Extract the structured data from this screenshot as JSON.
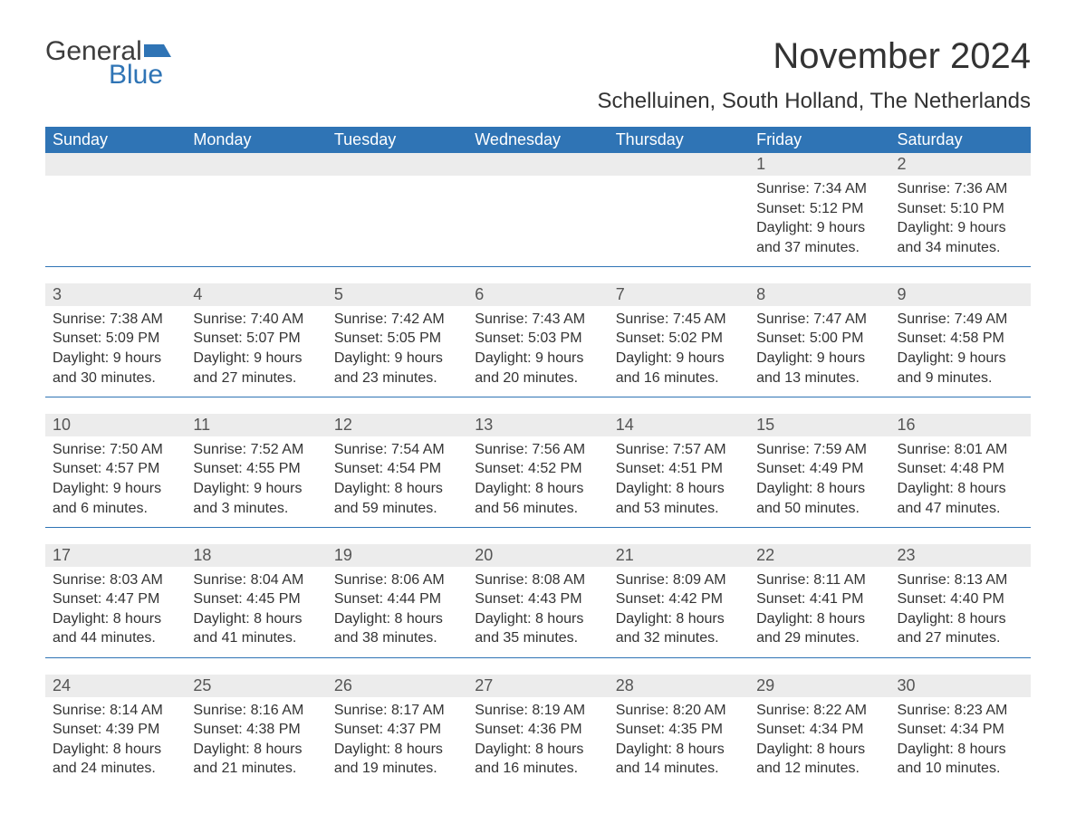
{
  "logo": {
    "text_general": "General",
    "text_blue": "Blue",
    "flag_color": "#2f74b5"
  },
  "title": "November 2024",
  "location": "Schelluinen, South Holland, The Netherlands",
  "colors": {
    "header_bg": "#2f74b5",
    "header_text": "#ffffff",
    "daynum_bg": "#ececec",
    "body_text": "#333333",
    "rule": "#2f74b5",
    "page_bg": "#ffffff"
  },
  "font_sizes": {
    "title_pt": 40,
    "location_pt": 24,
    "weekday_pt": 18,
    "daynum_pt": 18,
    "detail_pt": 16,
    "logo_pt": 30
  },
  "weekdays": [
    "Sunday",
    "Monday",
    "Tuesday",
    "Wednesday",
    "Thursday",
    "Friday",
    "Saturday"
  ],
  "labels": {
    "sunrise": "Sunrise",
    "sunset": "Sunset",
    "daylight": "Daylight"
  },
  "weeks": [
    [
      null,
      null,
      null,
      null,
      null,
      {
        "day": "1",
        "sunrise": "7:34 AM",
        "sunset": "5:12 PM",
        "daylight_l1": "9 hours",
        "daylight_l2": "and 37 minutes."
      },
      {
        "day": "2",
        "sunrise": "7:36 AM",
        "sunset": "5:10 PM",
        "daylight_l1": "9 hours",
        "daylight_l2": "and 34 minutes."
      }
    ],
    [
      {
        "day": "3",
        "sunrise": "7:38 AM",
        "sunset": "5:09 PM",
        "daylight_l1": "9 hours",
        "daylight_l2": "and 30 minutes."
      },
      {
        "day": "4",
        "sunrise": "7:40 AM",
        "sunset": "5:07 PM",
        "daylight_l1": "9 hours",
        "daylight_l2": "and 27 minutes."
      },
      {
        "day": "5",
        "sunrise": "7:42 AM",
        "sunset": "5:05 PM",
        "daylight_l1": "9 hours",
        "daylight_l2": "and 23 minutes."
      },
      {
        "day": "6",
        "sunrise": "7:43 AM",
        "sunset": "5:03 PM",
        "daylight_l1": "9 hours",
        "daylight_l2": "and 20 minutes."
      },
      {
        "day": "7",
        "sunrise": "7:45 AM",
        "sunset": "5:02 PM",
        "daylight_l1": "9 hours",
        "daylight_l2": "and 16 minutes."
      },
      {
        "day": "8",
        "sunrise": "7:47 AM",
        "sunset": "5:00 PM",
        "daylight_l1": "9 hours",
        "daylight_l2": "and 13 minutes."
      },
      {
        "day": "9",
        "sunrise": "7:49 AM",
        "sunset": "4:58 PM",
        "daylight_l1": "9 hours",
        "daylight_l2": "and 9 minutes."
      }
    ],
    [
      {
        "day": "10",
        "sunrise": "7:50 AM",
        "sunset": "4:57 PM",
        "daylight_l1": "9 hours",
        "daylight_l2": "and 6 minutes."
      },
      {
        "day": "11",
        "sunrise": "7:52 AM",
        "sunset": "4:55 PM",
        "daylight_l1": "9 hours",
        "daylight_l2": "and 3 minutes."
      },
      {
        "day": "12",
        "sunrise": "7:54 AM",
        "sunset": "4:54 PM",
        "daylight_l1": "8 hours",
        "daylight_l2": "and 59 minutes."
      },
      {
        "day": "13",
        "sunrise": "7:56 AM",
        "sunset": "4:52 PM",
        "daylight_l1": "8 hours",
        "daylight_l2": "and 56 minutes."
      },
      {
        "day": "14",
        "sunrise": "7:57 AM",
        "sunset": "4:51 PM",
        "daylight_l1": "8 hours",
        "daylight_l2": "and 53 minutes."
      },
      {
        "day": "15",
        "sunrise": "7:59 AM",
        "sunset": "4:49 PM",
        "daylight_l1": "8 hours",
        "daylight_l2": "and 50 minutes."
      },
      {
        "day": "16",
        "sunrise": "8:01 AM",
        "sunset": "4:48 PM",
        "daylight_l1": "8 hours",
        "daylight_l2": "and 47 minutes."
      }
    ],
    [
      {
        "day": "17",
        "sunrise": "8:03 AM",
        "sunset": "4:47 PM",
        "daylight_l1": "8 hours",
        "daylight_l2": "and 44 minutes."
      },
      {
        "day": "18",
        "sunrise": "8:04 AM",
        "sunset": "4:45 PM",
        "daylight_l1": "8 hours",
        "daylight_l2": "and 41 minutes."
      },
      {
        "day": "19",
        "sunrise": "8:06 AM",
        "sunset": "4:44 PM",
        "daylight_l1": "8 hours",
        "daylight_l2": "and 38 minutes."
      },
      {
        "day": "20",
        "sunrise": "8:08 AM",
        "sunset": "4:43 PM",
        "daylight_l1": "8 hours",
        "daylight_l2": "and 35 minutes."
      },
      {
        "day": "21",
        "sunrise": "8:09 AM",
        "sunset": "4:42 PM",
        "daylight_l1": "8 hours",
        "daylight_l2": "and 32 minutes."
      },
      {
        "day": "22",
        "sunrise": "8:11 AM",
        "sunset": "4:41 PM",
        "daylight_l1": "8 hours",
        "daylight_l2": "and 29 minutes."
      },
      {
        "day": "23",
        "sunrise": "8:13 AM",
        "sunset": "4:40 PM",
        "daylight_l1": "8 hours",
        "daylight_l2": "and 27 minutes."
      }
    ],
    [
      {
        "day": "24",
        "sunrise": "8:14 AM",
        "sunset": "4:39 PM",
        "daylight_l1": "8 hours",
        "daylight_l2": "and 24 minutes."
      },
      {
        "day": "25",
        "sunrise": "8:16 AM",
        "sunset": "4:38 PM",
        "daylight_l1": "8 hours",
        "daylight_l2": "and 21 minutes."
      },
      {
        "day": "26",
        "sunrise": "8:17 AM",
        "sunset": "4:37 PM",
        "daylight_l1": "8 hours",
        "daylight_l2": "and 19 minutes."
      },
      {
        "day": "27",
        "sunrise": "8:19 AM",
        "sunset": "4:36 PM",
        "daylight_l1": "8 hours",
        "daylight_l2": "and 16 minutes."
      },
      {
        "day": "28",
        "sunrise": "8:20 AM",
        "sunset": "4:35 PM",
        "daylight_l1": "8 hours",
        "daylight_l2": "and 14 minutes."
      },
      {
        "day": "29",
        "sunrise": "8:22 AM",
        "sunset": "4:34 PM",
        "daylight_l1": "8 hours",
        "daylight_l2": "and 12 minutes."
      },
      {
        "day": "30",
        "sunrise": "8:23 AM",
        "sunset": "4:34 PM",
        "daylight_l1": "8 hours",
        "daylight_l2": "and 10 minutes."
      }
    ]
  ]
}
